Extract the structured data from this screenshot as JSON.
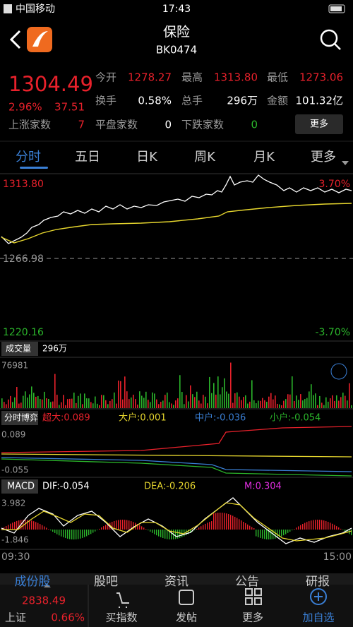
{
  "status_bar": {
    "carrier": "中国移动",
    "time": "17:43"
  },
  "header": {
    "title": "保险",
    "code": "BK0474"
  },
  "quote": {
    "price": "1304.49",
    "change_pct": "2.96%",
    "change": "37.51",
    "up_label": "上涨家数",
    "up_count": "7",
    "fields": [
      [
        "今开",
        "1278.27"
      ],
      [
        "最高",
        "1313.80"
      ],
      [
        "最低",
        "1273.06"
      ],
      [
        "换手",
        "0.58%"
      ],
      [
        "总手",
        "296万"
      ],
      [
        "金额",
        "101.32亿"
      ],
      [
        "平盘家数",
        "0"
      ],
      [
        "下跌家数",
        "0"
      ]
    ],
    "more_button": "更多"
  },
  "tabs": [
    "分时",
    "五日",
    "日K",
    "周K",
    "月K",
    "更多"
  ],
  "chart": {
    "high": "1313.80",
    "high_pct": "3.70%",
    "mid": "1266.98",
    "low": "1220.16",
    "low_pct": "-3.70%",
    "volume_label": "成交量",
    "volume": "296万",
    "volume_max": "76981",
    "game_label": "分时博弈",
    "game": [
      "超大:0.089",
      "大户:0.001",
      "中户:-0.036",
      "小户:-0.054"
    ],
    "game_max": "0.089",
    "game_min": "-0.055",
    "macd_label": "MACD",
    "macd": [
      "DIF:-0.054",
      "DEA:-0.206",
      "M:0.304"
    ],
    "macd_max": "3.982",
    "macd_min": "-1.846",
    "time_start": "09:30",
    "time_end": "15:00"
  },
  "sub_tabs": [
    "成份股",
    "股吧",
    "资讯",
    "公告",
    "研报"
  ],
  "bottom_nav": {
    "index_value": "2838.49",
    "index_name": "上证",
    "index_pct": "0.66%",
    "items": [
      "买指数",
      "发帖",
      "更多",
      "加自选"
    ]
  }
}
